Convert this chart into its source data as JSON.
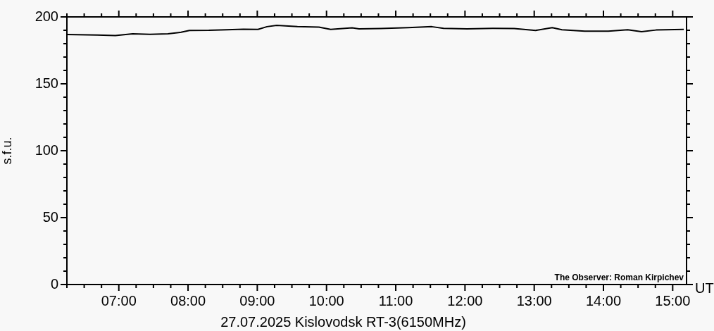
{
  "chart_data": {
    "type": "line",
    "title": "27.07.2025 Kislovodsk RT-3(6150MHz)",
    "xlabel": "UT",
    "ylabel": "s.f.u.",
    "annotations": [
      "The Observer: Roman Kirpichev"
    ],
    "x": [
      6.25,
      6.69,
      6.95,
      7.2,
      7.45,
      7.71,
      7.9,
      8.02,
      8.3,
      8.56,
      8.8,
      9.01,
      9.14,
      9.28,
      9.58,
      9.89,
      10.06,
      10.37,
      10.47,
      10.78,
      11.18,
      11.52,
      11.69,
      12.03,
      12.4,
      12.71,
      13.02,
      13.26,
      13.4,
      13.73,
      14.07,
      14.35,
      14.55,
      14.76,
      15.16
    ],
    "series": [
      {
        "color": "#000000",
        "values": [
          186.8,
          186.5,
          186,
          187.4,
          187,
          187.4,
          188.5,
          189.9,
          190,
          190.4,
          190.8,
          190.7,
          192.7,
          193.7,
          192.7,
          192.4,
          190.7,
          191.8,
          191.1,
          191.3,
          192,
          192.7,
          191.5,
          191.1,
          191.4,
          191.3,
          189.9,
          192,
          190.4,
          189.4,
          189.4,
          190.4,
          189,
          190.2,
          190.7
        ]
      }
    ],
    "xlim": [
      6.25,
      15.2
    ],
    "xticks": [
      {
        "value": 6.25,
        "label": null
      },
      {
        "value": 6.5,
        "label": null
      },
      {
        "value": 6.75,
        "label": null
      },
      {
        "value": 7,
        "label": "07:00"
      },
      {
        "value": 7.25,
        "label": null
      },
      {
        "value": 7.5,
        "label": null
      },
      {
        "value": 7.75,
        "label": null
      },
      {
        "value": 8,
        "label": "08:00"
      },
      {
        "value": 8.25,
        "label": null
      },
      {
        "value": 8.5,
        "label": null
      },
      {
        "value": 8.75,
        "label": null
      },
      {
        "value": 9,
        "label": "09:00"
      },
      {
        "value": 9.25,
        "label": null
      },
      {
        "value": 9.5,
        "label": null
      },
      {
        "value": 9.75,
        "label": null
      },
      {
        "value": 10,
        "label": "10:00"
      },
      {
        "value": 10.25,
        "label": null
      },
      {
        "value": 10.5,
        "label": null
      },
      {
        "value": 10.75,
        "label": null
      },
      {
        "value": 11,
        "label": "11:00"
      },
      {
        "value": 11.25,
        "label": null
      },
      {
        "value": 11.5,
        "label": null
      },
      {
        "value": 11.75,
        "label": null
      },
      {
        "value": 12,
        "label": "12:00"
      },
      {
        "value": 12.25,
        "label": null
      },
      {
        "value": 12.5,
        "label": null
      },
      {
        "value": 12.75,
        "label": null
      },
      {
        "value": 13,
        "label": "13:00"
      },
      {
        "value": 13.25,
        "label": null
      },
      {
        "value": 13.5,
        "label": null
      },
      {
        "value": 13.75,
        "label": null
      },
      {
        "value": 14,
        "label": "14:00"
      },
      {
        "value": 14.25,
        "label": null
      },
      {
        "value": 14.5,
        "label": null
      },
      {
        "value": 14.75,
        "label": null
      },
      {
        "value": 15,
        "label": "15:00"
      }
    ],
    "ylim": [
      0,
      200
    ],
    "yticks": [
      0,
      {
        "value": 10,
        "label": null
      },
      {
        "value": 20,
        "label": null
      },
      {
        "value": 30,
        "label": null
      },
      {
        "value": 40,
        "label": null
      },
      50,
      {
        "value": 60,
        "label": null
      },
      {
        "value": 70,
        "label": null
      },
      {
        "value": 80,
        "label": null
      },
      {
        "value": 90,
        "label": null
      },
      100,
      {
        "value": 110,
        "label": null
      },
      {
        "value": 120,
        "label": null
      },
      {
        "value": 130,
        "label": null
      },
      {
        "value": 140,
        "label": null
      },
      150,
      {
        "value": 160,
        "label": null
      },
      {
        "value": 170,
        "label": null
      },
      {
        "value": 180,
        "label": null
      },
      {
        "value": 190,
        "label": null
      },
      200
    ],
    "grid": false,
    "legend": false,
    "marker": "none",
    "line_style": "solid"
  }
}
